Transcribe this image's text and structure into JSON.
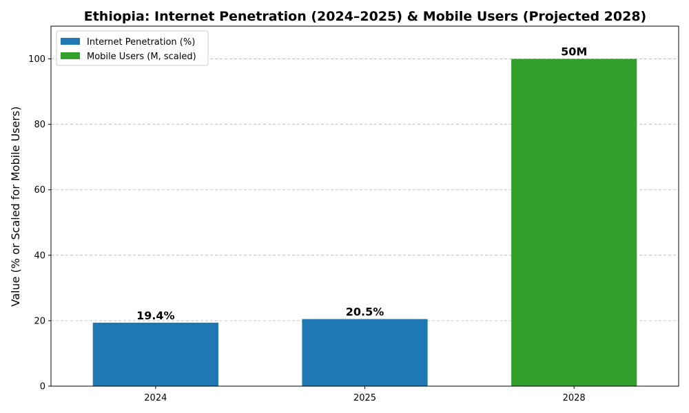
{
  "chart_data": {
    "type": "bar",
    "title": "Ethiopia: Internet Penetration (2024–2025) & Mobile Users (Projected 2028)",
    "xlabel": "",
    "ylabel": "Value (% or Scaled for Mobile Users)",
    "ylim": [
      0,
      110
    ],
    "yticks": [
      0,
      20,
      40,
      60,
      80,
      100
    ],
    "categories": [
      "2024",
      "2025",
      "2028"
    ],
    "grid": "y",
    "legend_position": "top-left",
    "series": [
      {
        "name": "Internet Penetration (%)",
        "color": "#1f77b4",
        "points": [
          {
            "category": "2024",
            "value": 19.4,
            "label": "19.4%"
          },
          {
            "category": "2025",
            "value": 20.5,
            "label": "20.5%"
          }
        ]
      },
      {
        "name": "Mobile Users (M, scaled)",
        "color": "#33a02c",
        "points": [
          {
            "category": "2028",
            "value": 100,
            "label": "50M"
          }
        ]
      }
    ]
  }
}
